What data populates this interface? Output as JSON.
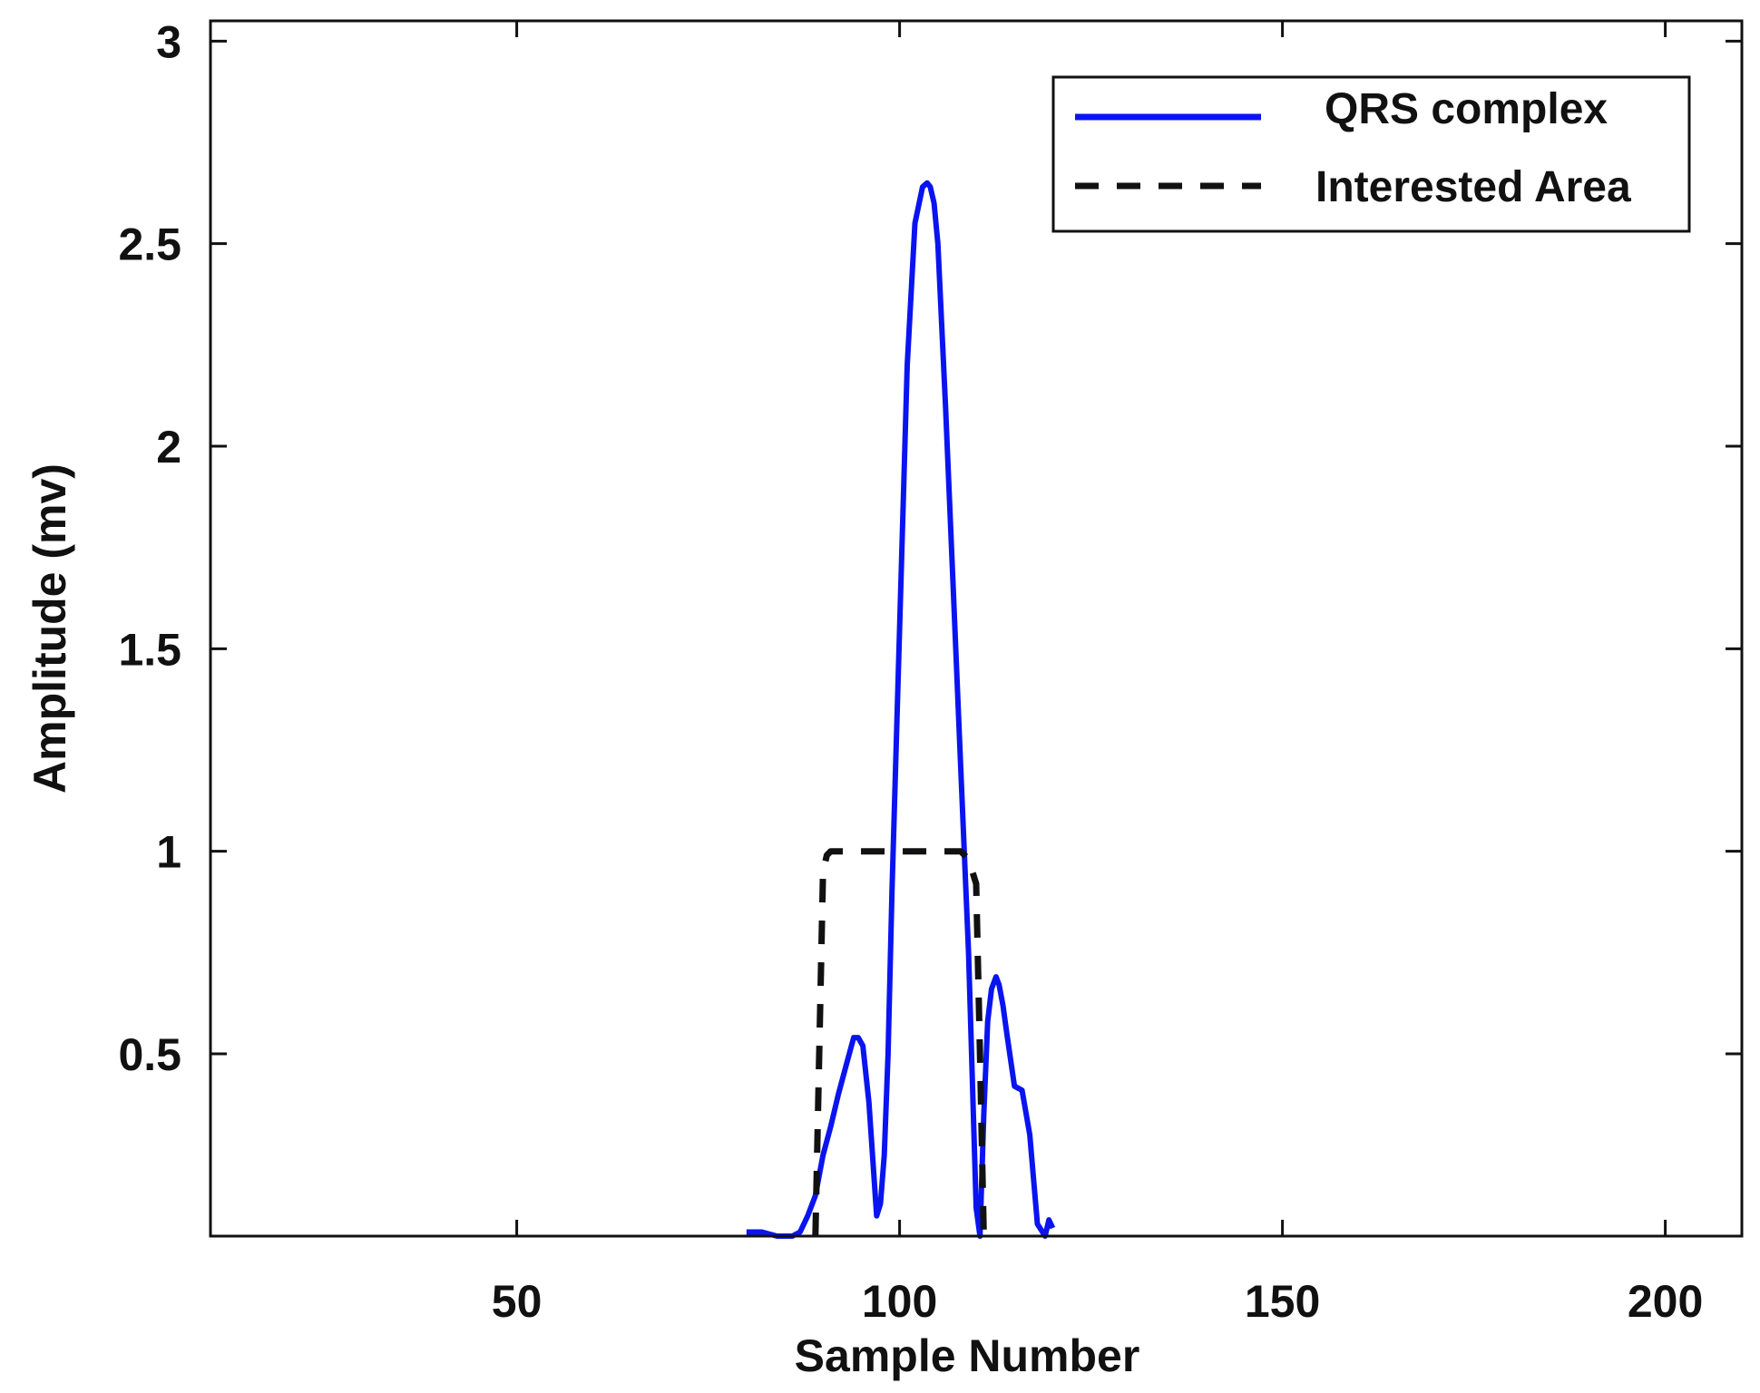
{
  "chart_data": {
    "type": "line",
    "xlabel": "Sample Number",
    "ylabel": "Amplitude (mv)",
    "xlim": [
      10,
      210
    ],
    "ylim": [
      0.05,
      3.05
    ],
    "xticks": [
      50,
      100,
      150,
      200
    ],
    "yticks": [
      0.5,
      1,
      1.5,
      2,
      2.5,
      3
    ],
    "xtick_labels": [
      "50",
      "100",
      "150",
      "200"
    ],
    "ytick_labels": [
      "0.5",
      "1",
      "1.5",
      "2",
      "2.5",
      "3"
    ],
    "grid": false,
    "legend_position": "top-right",
    "series": [
      {
        "name": "QRS complex",
        "color": "#0a14f0",
        "style": "solid",
        "x": [
          80,
          82,
          84,
          86,
          87,
          88,
          89,
          90,
          91,
          92,
          93,
          94,
          94.6,
          95.2,
          96,
          97,
          97.5,
          98,
          98.5,
          99,
          100,
          101,
          102,
          103,
          103.6,
          104,
          104.5,
          105,
          106,
          107,
          108,
          109,
          110,
          110.5,
          111,
          111.5,
          112,
          112.6,
          113,
          113.5,
          114,
          115,
          116,
          117,
          118,
          119,
          119.5,
          120
        ],
        "y": [
          0.06,
          0.06,
          0.05,
          0.05,
          0.06,
          0.1,
          0.15,
          0.25,
          0.32,
          0.4,
          0.47,
          0.54,
          0.54,
          0.52,
          0.38,
          0.1,
          0.13,
          0.25,
          0.5,
          0.9,
          1.55,
          2.2,
          2.55,
          2.64,
          2.65,
          2.64,
          2.6,
          2.5,
          2.1,
          1.65,
          1.2,
          0.75,
          0.12,
          0.05,
          0.35,
          0.58,
          0.66,
          0.69,
          0.67,
          0.62,
          0.55,
          0.42,
          0.41,
          0.3,
          0.08,
          0.05,
          0.09,
          0.07
        ]
      },
      {
        "name": "Interested Area",
        "color": "#111111",
        "style": "dashed",
        "x": [
          89,
          90,
          90.5,
          91,
          108,
          109,
          110,
          110.5,
          111
        ],
        "y": [
          0.05,
          0.95,
          0.99,
          1.0,
          1.0,
          0.98,
          0.92,
          0.5,
          0.05
        ]
      }
    ]
  }
}
